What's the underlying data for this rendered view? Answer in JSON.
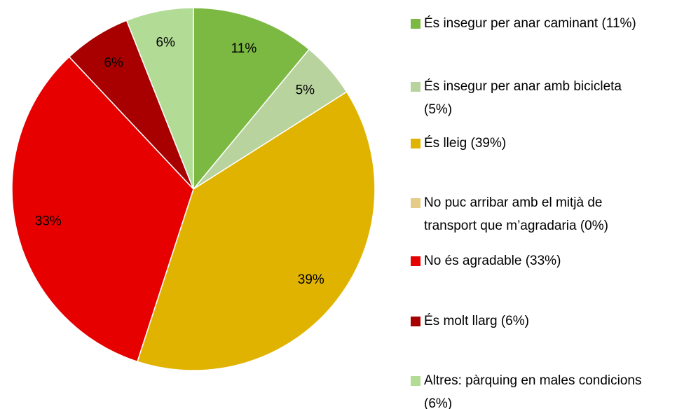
{
  "chart_data": {
    "type": "pie",
    "categories": [
      "És insegur per anar caminant (11%)",
      "És insegur per anar amb bicicleta (5%)",
      "És lleig (39%)",
      "No puc arribar amb el mitjà de transport que m’agradaria (0%)",
      "No és agradable (33%)",
      "És molt llarg  (6%)",
      "Altres: pàrquing en males condicions (6%)"
    ],
    "values": [
      11,
      5,
      39,
      0,
      33,
      6,
      6
    ],
    "value_labels": [
      "11%",
      "5%",
      "39%",
      null,
      "33%",
      "6%",
      "6%"
    ],
    "colors": [
      "#7cb943",
      "#b8d39e",
      "#e0b300",
      "#e4cc88",
      "#e60000",
      "#a80000",
      "#b2dc96"
    ],
    "legend": "right"
  }
}
